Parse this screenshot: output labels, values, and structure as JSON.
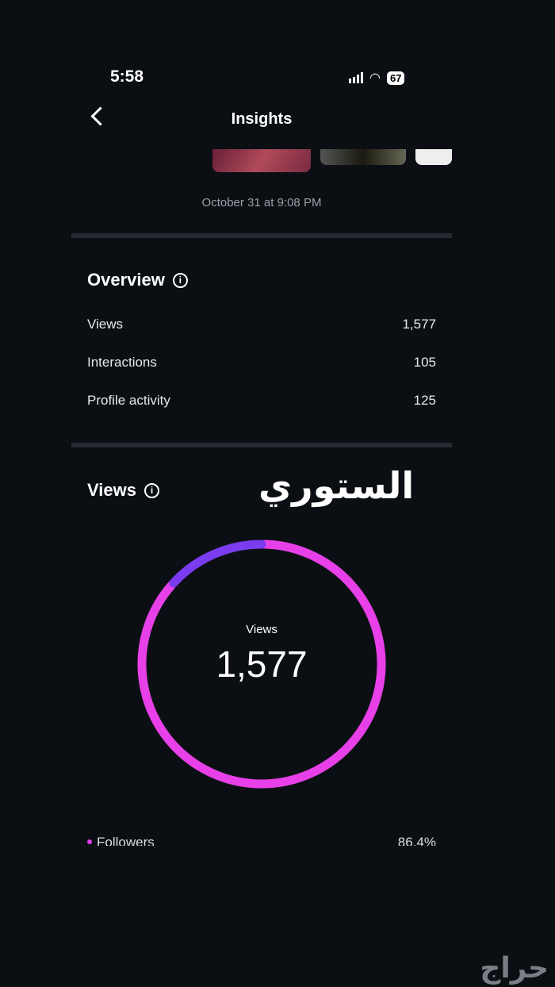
{
  "status_bar": {
    "time": "5:58",
    "battery": "67"
  },
  "header": {
    "title": "Insights"
  },
  "story": {
    "date": "October 31 at 9:08 PM"
  },
  "overview": {
    "title": "Overview",
    "rows": [
      {
        "label": "Views",
        "value": "1,577"
      },
      {
        "label": "Interactions",
        "value": "105"
      },
      {
        "label": "Profile activity",
        "value": "125"
      }
    ]
  },
  "views": {
    "title": "Views",
    "overlay_text": "الستوري",
    "center_label": "Views",
    "center_value": "1,577",
    "legend": [
      {
        "label": "Followers",
        "value": "86.4%"
      }
    ]
  },
  "chart_data": {
    "type": "pie",
    "style": "donut",
    "values": [
      86.4,
      13.6
    ],
    "colors": [
      "#e840e8",
      "#7b3cf0"
    ],
    "legend": [
      "Followers"
    ]
  },
  "watermark": "حراج"
}
